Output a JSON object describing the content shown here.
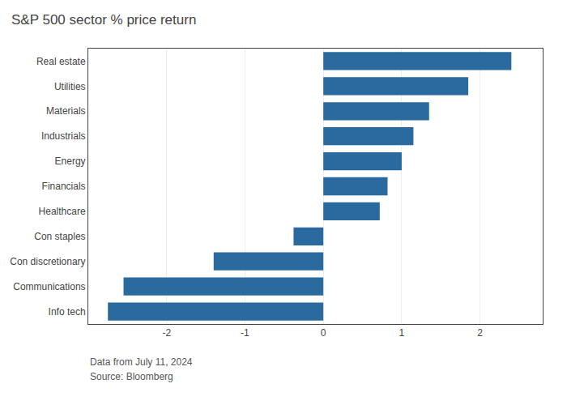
{
  "chart_data": {
    "type": "bar",
    "orientation": "horizontal",
    "title": "S&P 500 sector % price return",
    "categories": [
      "Real estate",
      "Utilities",
      "Materials",
      "Industrials",
      "Energy",
      "Financials",
      "Healthcare",
      "Con staples",
      "Con discretionary",
      "Communications",
      "Info tech"
    ],
    "values": [
      2.4,
      1.85,
      1.35,
      1.15,
      1.0,
      0.82,
      0.72,
      -0.38,
      -1.4,
      -2.55,
      -2.75
    ],
    "color": "#2b6a9e",
    "xlim": [
      -3.0,
      2.8
    ],
    "xticks": [
      -2,
      -1,
      0,
      1,
      2
    ],
    "grid": true,
    "annotations": [
      "Data from July 11, 2024",
      "Source: Bloomberg"
    ]
  }
}
